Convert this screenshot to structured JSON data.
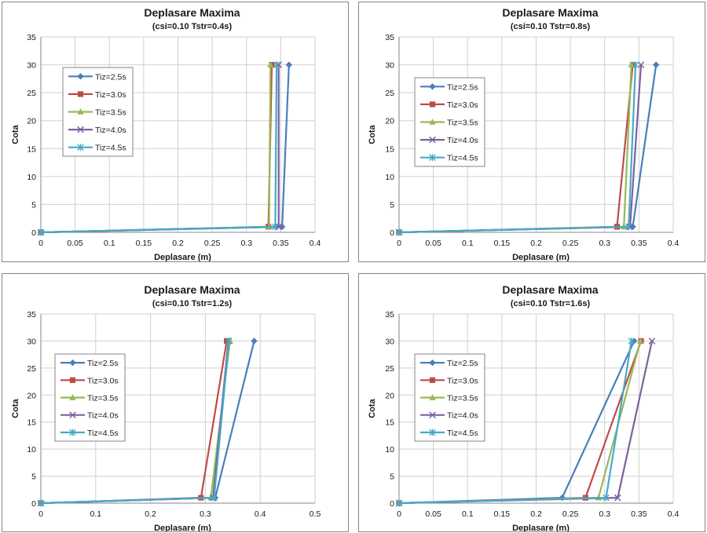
{
  "chart_data": [
    {
      "type": "line",
      "title": "Deplasare Maxima",
      "subtitle": "(csi=0.10  Tstr=0.4s)",
      "xlabel": "Deplasare (m)",
      "ylabel": "Cota",
      "xlim": [
        0,
        0.4
      ],
      "ylim": [
        0,
        35
      ],
      "xticks": [
        "0",
        "0.05",
        "0.1",
        "0.15",
        "0.2",
        "0.25",
        "0.3",
        "0.35",
        "0.4"
      ],
      "yticks": [
        "0",
        "5",
        "10",
        "15",
        "20",
        "25",
        "30",
        "35"
      ],
      "grid": true,
      "legend_position": "left",
      "series": [
        {
          "name": "Tiz=2.5s",
          "points": [
            [
              0,
              0
            ],
            [
              0.352,
              1
            ],
            [
              0.362,
              30
            ]
          ]
        },
        {
          "name": "Tiz=3.0s",
          "points": [
            [
              0,
              0
            ],
            [
              0.332,
              1
            ],
            [
              0.337,
              30
            ]
          ]
        },
        {
          "name": "Tiz=3.5s",
          "points": [
            [
              0,
              0
            ],
            [
              0.333,
              1
            ],
            [
              0.335,
              30
            ]
          ]
        },
        {
          "name": "Tiz=4.0s",
          "points": [
            [
              0,
              0
            ],
            [
              0.347,
              1
            ],
            [
              0.347,
              30
            ]
          ]
        },
        {
          "name": "Tiz=4.5s",
          "points": [
            [
              0,
              0
            ],
            [
              0.342,
              1
            ],
            [
              0.344,
              30
            ]
          ]
        }
      ]
    },
    {
      "type": "line",
      "title": "Deplasare Maxima",
      "subtitle": "(csi=0.10  Tstr=0.8s)",
      "xlabel": "Deplasare (m)",
      "ylabel": "Cota",
      "xlim": [
        0,
        0.4
      ],
      "ylim": [
        0,
        35
      ],
      "xticks": [
        "0",
        "0.05",
        "0.1",
        "0.15",
        "0.2",
        "0.25",
        "0.3",
        "0.35",
        "0.4"
      ],
      "yticks": [
        "0",
        "5",
        "10",
        "15",
        "20",
        "25",
        "30",
        "35"
      ],
      "grid": true,
      "legend_position": "left",
      "series": [
        {
          "name": "Tiz=2.5s",
          "points": [
            [
              0,
              0
            ],
            [
              0.341,
              1
            ],
            [
              0.375,
              30
            ]
          ]
        },
        {
          "name": "Tiz=3.0s",
          "points": [
            [
              0,
              0
            ],
            [
              0.318,
              1
            ],
            [
              0.341,
              30
            ]
          ]
        },
        {
          "name": "Tiz=3.5s",
          "points": [
            [
              0,
              0
            ],
            [
              0.328,
              1
            ],
            [
              0.339,
              30
            ]
          ]
        },
        {
          "name": "Tiz=4.0s",
          "points": [
            [
              0,
              0
            ],
            [
              0.337,
              1
            ],
            [
              0.353,
              30
            ]
          ]
        },
        {
          "name": "Tiz=4.5s",
          "points": [
            [
              0,
              0
            ],
            [
              0.335,
              1
            ],
            [
              0.345,
              30
            ]
          ]
        }
      ]
    },
    {
      "type": "line",
      "title": "Deplasare Maxima",
      "subtitle": "(csi=0.10  Tstr=1.2s)",
      "xlabel": "Deplasare (m)",
      "ylabel": "Cota",
      "xlim": [
        0,
        0.5
      ],
      "ylim": [
        0,
        35
      ],
      "xticks": [
        "0",
        "0.1",
        "0.2",
        "0.3",
        "0.4",
        "0.5"
      ],
      "yticks": [
        "0",
        "5",
        "10",
        "15",
        "20",
        "25",
        "30",
        "35"
      ],
      "grid": true,
      "legend_position": "left",
      "series": [
        {
          "name": "Tiz=2.5s",
          "points": [
            [
              0,
              0
            ],
            [
              0.318,
              1
            ],
            [
              0.389,
              30
            ]
          ]
        },
        {
          "name": "Tiz=3.0s",
          "points": [
            [
              0,
              0
            ],
            [
              0.292,
              1
            ],
            [
              0.339,
              30
            ]
          ]
        },
        {
          "name": "Tiz=3.5s",
          "points": [
            [
              0,
              0
            ],
            [
              0.31,
              1
            ],
            [
              0.345,
              30
            ]
          ]
        },
        {
          "name": "Tiz=4.0s",
          "points": [
            [
              0,
              0
            ],
            [
              0.314,
              1
            ],
            [
              0.342,
              30
            ]
          ]
        },
        {
          "name": "Tiz=4.5s",
          "points": [
            [
              0,
              0
            ],
            [
              0.316,
              1
            ],
            [
              0.343,
              30
            ]
          ]
        }
      ]
    },
    {
      "type": "line",
      "title": "Deplasare Maxima",
      "subtitle": "(csi=0.10  Tstr=1.6s)",
      "xlabel": "Deplasare (m)",
      "ylabel": "Cota",
      "xlim": [
        0,
        0.4
      ],
      "ylim": [
        0,
        35
      ],
      "xticks": [
        "0",
        "0.05",
        "0.1",
        "0.15",
        "0.2",
        "0.25",
        "0.3",
        "0.35",
        "0.4"
      ],
      "yticks": [
        "0",
        "5",
        "10",
        "15",
        "20",
        "25",
        "30",
        "35"
      ],
      "grid": true,
      "legend_position": "left",
      "series": [
        {
          "name": "Tiz=2.5s",
          "points": [
            [
              0,
              0
            ],
            [
              0.238,
              1
            ],
            [
              0.343,
              30
            ]
          ]
        },
        {
          "name": "Tiz=3.0s",
          "points": [
            [
              0,
              0
            ],
            [
              0.272,
              1
            ],
            [
              0.353,
              30
            ]
          ]
        },
        {
          "name": "Tiz=3.5s",
          "points": [
            [
              0,
              0
            ],
            [
              0.291,
              1
            ],
            [
              0.352,
              30
            ]
          ]
        },
        {
          "name": "Tiz=4.0s",
          "points": [
            [
              0,
              0
            ],
            [
              0.319,
              1
            ],
            [
              0.369,
              30
            ]
          ]
        },
        {
          "name": "Tiz=4.5s",
          "points": [
            [
              0,
              0
            ],
            [
              0.302,
              1
            ],
            [
              0.339,
              30
            ]
          ]
        }
      ]
    }
  ],
  "series_style": {
    "colors": [
      "#4a7ebb",
      "#be4b48",
      "#98b954",
      "#7d60a0",
      "#46aac5"
    ],
    "markers": [
      "diamond",
      "square",
      "triangle",
      "x",
      "star"
    ]
  }
}
